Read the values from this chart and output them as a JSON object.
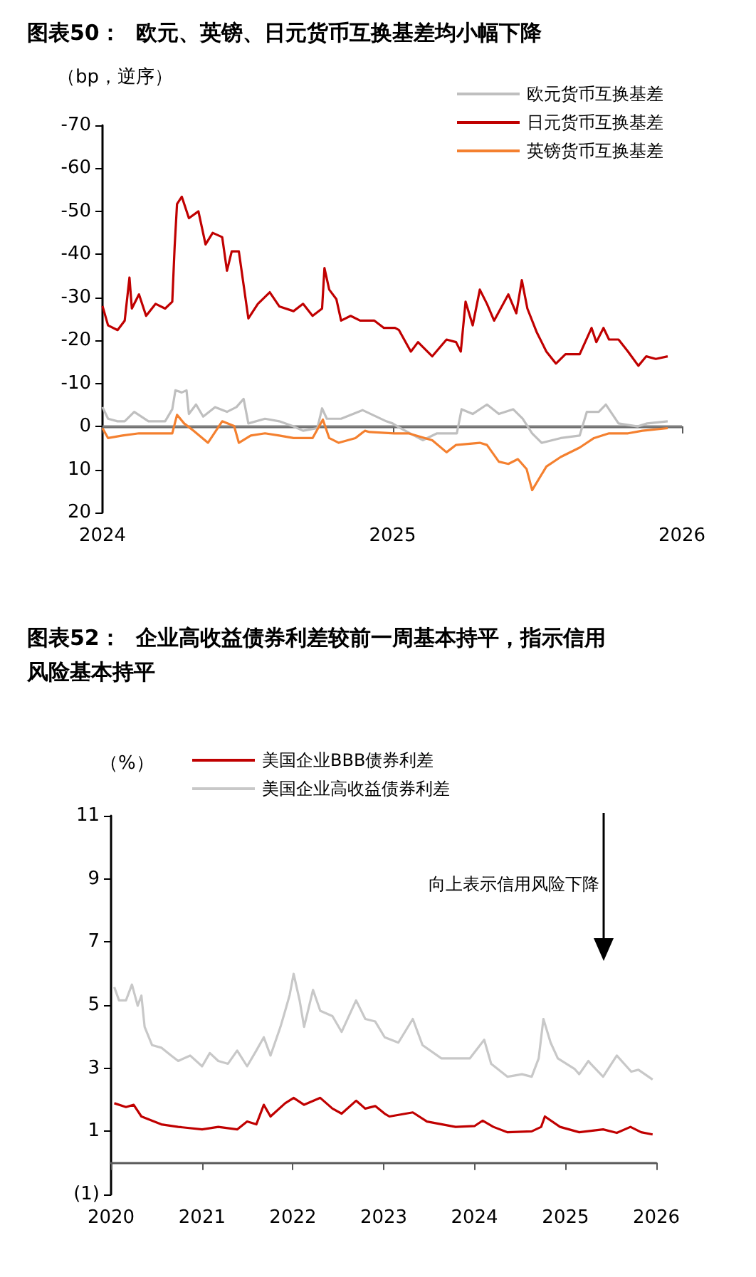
{
  "chart_data": [
    {
      "type": "line",
      "title": "图表50：  欧元、英镑、日元货币互换基差均小幅下降",
      "ylabel": "（bp，逆序）",
      "xlim": [
        "2024-01-01",
        "2026-01-01"
      ],
      "xticks": [
        {
          "value": "2024-01-01",
          "label": "2024"
        },
        {
          "value": "2025-01-01",
          "label": "2025"
        },
        {
          "value": "2026-01-01",
          "label": "2026"
        }
      ],
      "ylim": [
        20,
        -70
      ],
      "yticks": [
        -70,
        -60,
        -50,
        -40,
        -30,
        -20,
        -10,
        0,
        10,
        20
      ],
      "grid": false,
      "legend": "top right",
      "ref_lines": [
        {
          "axis": "y",
          "value": 0,
          "color": "#7f7f7f"
        }
      ],
      "marker": "none",
      "line_style": "solid",
      "series": [
        {
          "name": "欧元货币互换基差",
          "color": "#bfbfbf",
          "x": [
            "2024-01-01",
            "2024-01-08",
            "2024-01-20",
            "2024-01-29",
            "2024-02-10",
            "2024-02-28",
            "2024-03-20",
            "2024-03-29",
            "2024-04-02",
            "2024-04-10",
            "2024-04-16",
            "2024-04-19",
            "2024-04-28",
            "2024-05-07",
            "2024-05-22",
            "2024-06-06",
            "2024-06-18",
            "2024-06-27",
            "2024-07-03",
            "2024-07-24",
            "2024-08-11",
            "2024-08-29",
            "2024-09-10",
            "2024-09-28",
            "2024-10-04",
            "2024-10-10",
            "2024-10-28",
            "2024-11-24",
            "2024-12-24",
            "2025-01-01",
            "2025-01-09",
            "2025-02-08",
            "2025-02-26",
            "2025-03-23",
            "2025-03-29",
            "2025-04-12",
            "2025-04-30",
            "2025-05-15",
            "2025-06-02",
            "2025-06-14",
            "2025-06-26",
            "2025-07-08",
            "2025-08-01",
            "2025-08-25",
            "2025-09-03",
            "2025-09-18",
            "2025-09-27",
            "2025-10-13",
            "2025-11-06",
            "2025-11-18",
            "2025-12-14"
          ],
          "values": [
            -4.5,
            -1.8,
            -1.2,
            -1.2,
            -3.4,
            -1.2,
            -1.2,
            -4,
            -8.4,
            -7.9,
            -8.4,
            -2.9,
            -5.1,
            -2.3,
            -4.5,
            -3.4,
            -4.5,
            -6.4,
            -0.7,
            -1.8,
            -1.2,
            0,
            1,
            0.4,
            -4.2,
            -1.8,
            -1.8,
            -3.8,
            -1.2,
            -0.7,
            0.2,
            3.2,
            1.6,
            1.6,
            -4,
            -2.9,
            -5.1,
            -2.9,
            -4,
            -1.8,
            1.6,
            3.8,
            2.7,
            2.1,
            -3.4,
            -3.4,
            -5.1,
            -0.7,
            0,
            -0.7,
            -1.2
          ]
        },
        {
          "name": "日元货币互换基差",
          "color": "#c00000",
          "x": [
            "2024-01-01",
            "2024-01-08",
            "2024-01-20",
            "2024-01-29",
            "2024-02-04",
            "2024-02-07",
            "2024-02-16",
            "2024-02-25",
            "2024-03-08",
            "2024-03-20",
            "2024-03-29",
            "2024-04-01",
            "2024-04-04",
            "2024-04-10",
            "2024-04-19",
            "2024-05-01",
            "2024-05-10",
            "2024-05-19",
            "2024-05-31",
            "2024-06-06",
            "2024-06-12",
            "2024-06-21",
            "2024-06-27",
            "2024-07-03",
            "2024-07-15",
            "2024-07-30",
            "2024-08-11",
            "2024-08-29",
            "2024-09-10",
            "2024-09-22",
            "2024-10-04",
            "2024-10-07",
            "2024-10-13",
            "2024-10-22",
            "2024-10-28",
            "2024-11-09",
            "2024-11-21",
            "2024-12-09",
            "2024-12-21",
            "2025-01-04",
            "2025-01-09",
            "2025-01-24",
            "2025-02-02",
            "2025-02-20",
            "2025-03-10",
            "2025-03-22",
            "2025-03-28",
            "2025-04-03",
            "2025-04-12",
            "2025-04-21",
            "2025-04-30",
            "2025-05-09",
            "2025-05-27",
            "2025-06-06",
            "2025-06-13",
            "2025-06-20",
            "2025-07-02",
            "2025-07-14",
            "2025-07-26",
            "2025-08-07",
            "2025-08-25",
            "2025-09-09",
            "2025-09-15",
            "2025-09-24",
            "2025-10-01",
            "2025-10-13",
            "2025-10-25",
            "2025-11-07",
            "2025-11-17",
            "2025-11-29",
            "2025-12-14"
          ],
          "values": [
            -28,
            -23.5,
            -22.4,
            -24.6,
            -34.6,
            -27.4,
            -30.7,
            -25.7,
            -28.5,
            -27.4,
            -29,
            -41.8,
            -51.7,
            -53.4,
            -48.4,
            -50,
            -42.3,
            -45,
            -44,
            -36.2,
            -40.7,
            -40.7,
            -32.9,
            -25.1,
            -28.5,
            -31.2,
            -27.9,
            -26.8,
            -28.5,
            -25.7,
            -27.4,
            -36.8,
            -31.8,
            -29.6,
            -24.6,
            -25.7,
            -24.6,
            -24.6,
            -22.9,
            -22.9,
            -22.4,
            -17.4,
            -19.6,
            -16.3,
            -20.2,
            -19.6,
            -17.4,
            -29,
            -23.5,
            -31.8,
            -28.5,
            -24.6,
            -30.7,
            -26.3,
            -34,
            -27.4,
            -21.8,
            -17.4,
            -14.6,
            -16.8,
            -16.8,
            -22.9,
            -19.6,
            -22.9,
            -20.2,
            -20.2,
            -17.4,
            -14.1,
            -16.3,
            -15.7,
            -16.3
          ]
        },
        {
          "name": "英镑货币互换基差",
          "color": "#f4802f",
          "x": [
            "2024-01-01",
            "2024-01-08",
            "2024-01-26",
            "2024-02-16",
            "2024-03-20",
            "2024-03-29",
            "2024-04-04",
            "2024-04-13",
            "2024-04-25",
            "2024-05-13",
            "2024-05-31",
            "2024-06-15",
            "2024-06-21",
            "2024-07-06",
            "2024-07-24",
            "2024-08-11",
            "2024-08-29",
            "2024-09-22",
            "2024-10-05",
            "2024-10-13",
            "2024-10-25",
            "2024-11-15",
            "2024-11-27",
            "2024-12-03",
            "2025-01-03",
            "2025-01-21",
            "2025-02-20",
            "2025-03-10",
            "2025-03-22",
            "2025-04-21",
            "2025-04-30",
            "2025-05-15",
            "2025-05-27",
            "2025-06-08",
            "2025-06-19",
            "2025-06-26",
            "2025-07-14",
            "2025-08-01",
            "2025-08-25",
            "2025-09-12",
            "2025-10-01",
            "2025-10-25",
            "2025-11-12",
            "2025-12-14"
          ],
          "values": [
            0.4,
            2.7,
            2.1,
            1.6,
            1.6,
            1.6,
            -2.7,
            -0.7,
            1,
            3.8,
            -1.2,
            -0.1,
            3.8,
            2.1,
            1.6,
            2.1,
            2.7,
            2.7,
            -1.6,
            2.7,
            3.8,
            2.7,
            1,
            1.3,
            1.6,
            1.6,
            3.2,
            6,
            4.3,
            3.8,
            4.3,
            8.2,
            8.7,
            7.6,
            9.9,
            14.8,
            9.3,
            7.1,
            4.9,
            2.7,
            1.6,
            1.6,
            1,
            0.4
          ]
        }
      ]
    },
    {
      "type": "line",
      "title": "图表52：  企业高收益债券利差较前一周基本持平，指示信用风险基本持平",
      "ylabel": "（%）",
      "annotations": [
        "向上表示信用风险下降"
      ],
      "xlim": [
        "2020-01-01",
        "2026-01-01"
      ],
      "xticks": [
        {
          "value": "2020-01-01",
          "label": "2020"
        },
        {
          "value": "2021-01-01",
          "label": "2021"
        },
        {
          "value": "2022-01-01",
          "label": "2022"
        },
        {
          "value": "2023-01-01",
          "label": "2023"
        },
        {
          "value": "2024-01-01",
          "label": "2024"
        },
        {
          "value": "2025-01-01",
          "label": "2025"
        },
        {
          "value": "2026-01-01",
          "label": "2026"
        }
      ],
      "ylim": [
        -1,
        11
      ],
      "yticks": [
        {
          "value": -1,
          "label": "(1)"
        },
        1,
        3,
        5,
        7,
        9,
        11
      ],
      "grid": false,
      "legend": "top",
      "marker": "none",
      "line_style": "solid",
      "series": [
        {
          "name": "美国企业BBB债券利差",
          "color": "#c00000",
          "x": [
            "2020-01-14",
            "2020-03-01",
            "2020-04-01",
            "2020-05-02",
            "2020-07-21",
            "2020-09-27",
            "2021-01-01",
            "2021-03-07",
            "2021-05-22",
            "2021-07-01",
            "2021-08-07",
            "2021-09-06",
            "2021-10-03",
            "2021-12-01",
            "2022-01-04",
            "2022-02-15",
            "2022-04-21",
            "2022-06-09",
            "2022-07-16",
            "2022-09-12",
            "2022-10-19",
            "2022-11-28",
            "2023-01-05",
            "2023-01-24",
            "2023-04-28",
            "2023-06-24",
            "2023-10-17",
            "2024-01-02",
            "2024-02-03",
            "2024-03-17",
            "2024-05-13",
            "2024-08-18",
            "2024-09-25",
            "2024-10-10",
            "2024-12-10",
            "2025-02-25",
            "2025-06-01",
            "2025-07-26",
            "2025-09-19",
            "2025-11-01",
            "2025-12-17"
          ],
          "values": [
            1.89,
            1.77,
            1.84,
            1.47,
            1.22,
            1.14,
            1.06,
            1.14,
            1.06,
            1.31,
            1.22,
            1.84,
            1.47,
            1.89,
            2.06,
            1.84,
            2.06,
            1.72,
            1.56,
            1.97,
            1.72,
            1.8,
            1.56,
            1.47,
            1.6,
            1.31,
            1.14,
            1.17,
            1.34,
            1.14,
            0.97,
            1,
            1.14,
            1.47,
            1.14,
            0.97,
            1.06,
            0.95,
            1.14,
            0.97,
            0.9
          ]
        },
        {
          "name": "美国企业高收益债券利差",
          "color": "#c8c8c8",
          "x": [
            "2020-01-14",
            "2020-02-02",
            "2020-03-01",
            "2020-03-25",
            "2020-04-17",
            "2020-05-02",
            "2020-05-15",
            "2020-06-14",
            "2020-07-21",
            "2020-08-30",
            "2020-09-27",
            "2020-11-14",
            "2021-01-01",
            "2021-02-01",
            "2021-03-07",
            "2021-04-15",
            "2021-05-22",
            "2021-07-01",
            "2021-08-07",
            "2021-09-06",
            "2021-10-03",
            "2021-11-12",
            "2021-12-01",
            "2021-12-19",
            "2022-01-04",
            "2022-01-28",
            "2022-02-15",
            "2022-03-23",
            "2022-04-21",
            "2022-06-09",
            "2022-07-16",
            "2022-09-12",
            "2022-10-19",
            "2022-11-28",
            "2023-01-05",
            "2023-03-01",
            "2023-04-28",
            "2023-06-06",
            "2023-08-21",
            "2023-10-17",
            "2023-12-13",
            "2024-02-09",
            "2024-03-08",
            "2024-05-13",
            "2024-07-10",
            "2024-08-18",
            "2024-09-15",
            "2024-10-04",
            "2024-11-02",
            "2024-12-01",
            "2025-02-06",
            "2025-02-25",
            "2025-04-03",
            "2025-04-12",
            "2025-06-01",
            "2025-07-26",
            "2025-09-22",
            "2025-10-21",
            "2025-12-17"
          ],
          "values": [
            5.57,
            5.15,
            5.15,
            5.65,
            4.98,
            5.3,
            4.31,
            3.73,
            3.65,
            3.4,
            3.23,
            3.4,
            3.06,
            3.48,
            3.23,
            3.14,
            3.56,
            3.06,
            3.56,
            3.98,
            3.4,
            4.31,
            4.82,
            5.32,
            5.99,
            5.15,
            4.31,
            5.48,
            4.82,
            4.65,
            4.15,
            5.15,
            4.56,
            4.48,
            3.98,
            3.81,
            4.56,
            3.73,
            3.31,
            3.31,
            3.31,
            3.9,
            3.14,
            2.73,
            2.81,
            2.73,
            3.31,
            4.56,
            3.81,
            3.31,
            2.98,
            2.81,
            3.23,
            3.14,
            2.73,
            3.4,
            2.89,
            2.95,
            2.64
          ]
        }
      ]
    }
  ]
}
